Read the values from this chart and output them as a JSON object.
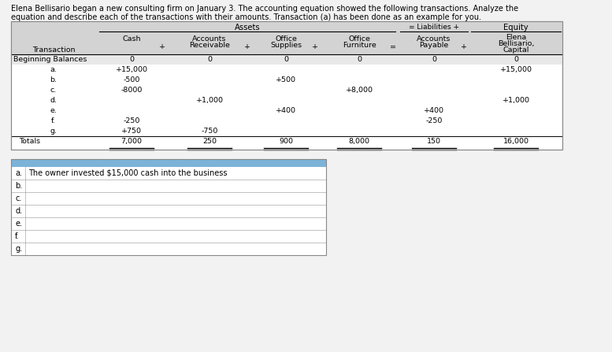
{
  "title_line1": "Elena Bellisario began a new consulting firm on January 3. The accounting equation showed the following transactions. Analyze the",
  "title_line2": "equation and describe each of the transactions with their amounts. Transaction (a) has been done as an example for you.",
  "background_color": "#f2f2f2",
  "table_bg": "#ffffff",
  "header_gray": "#d3d3d3",
  "rows": [
    {
      "label": "Beginning Balances",
      "cash": "0",
      "ar": "0",
      "supplies": "0",
      "furniture": "0",
      "ap": "0",
      "capital": "0"
    },
    {
      "label": "a.",
      "cash": "+15,000",
      "ar": "",
      "supplies": "",
      "furniture": "",
      "ap": "",
      "capital": "+15,000"
    },
    {
      "label": "b.",
      "cash": "-500",
      "ar": "",
      "supplies": "+500",
      "furniture": "",
      "ap": "",
      "capital": ""
    },
    {
      "label": "c.",
      "cash": "-8000",
      "ar": "",
      "supplies": "",
      "furniture": "+8,000",
      "ap": "",
      "capital": ""
    },
    {
      "label": "d.",
      "cash": "",
      "ar": "+1,000",
      "supplies": "",
      "furniture": "",
      "ap": "",
      "capital": "+1,000"
    },
    {
      "label": "e.",
      "cash": "",
      "ar": "",
      "supplies": "+400",
      "furniture": "",
      "ap": "+400",
      "capital": ""
    },
    {
      "label": "f.",
      "cash": "-250",
      "ar": "",
      "supplies": "",
      "furniture": "",
      "ap": "-250",
      "capital": ""
    },
    {
      "label": "g.",
      "cash": "+750",
      "ar": "-750",
      "supplies": "",
      "furniture": "",
      "ap": "",
      "capital": ""
    },
    {
      "label": "Totals",
      "cash": "7,000",
      "ar": "250",
      "supplies": "900",
      "furniture": "8,000",
      "ap": "150",
      "capital": "16,000"
    }
  ],
  "answer_text": "The owner invested $15,000 cash into the business",
  "answer_rows": [
    "a.",
    "b.",
    "c.",
    "d.",
    "e.",
    "f.",
    "g."
  ],
  "answer_header_color": "#7db3d8",
  "answer_row_colors": [
    "#ffffff",
    "#ffffff",
    "#ffffff",
    "#ffffff",
    "#ffffff",
    "#ffffff",
    "#ffffff"
  ]
}
